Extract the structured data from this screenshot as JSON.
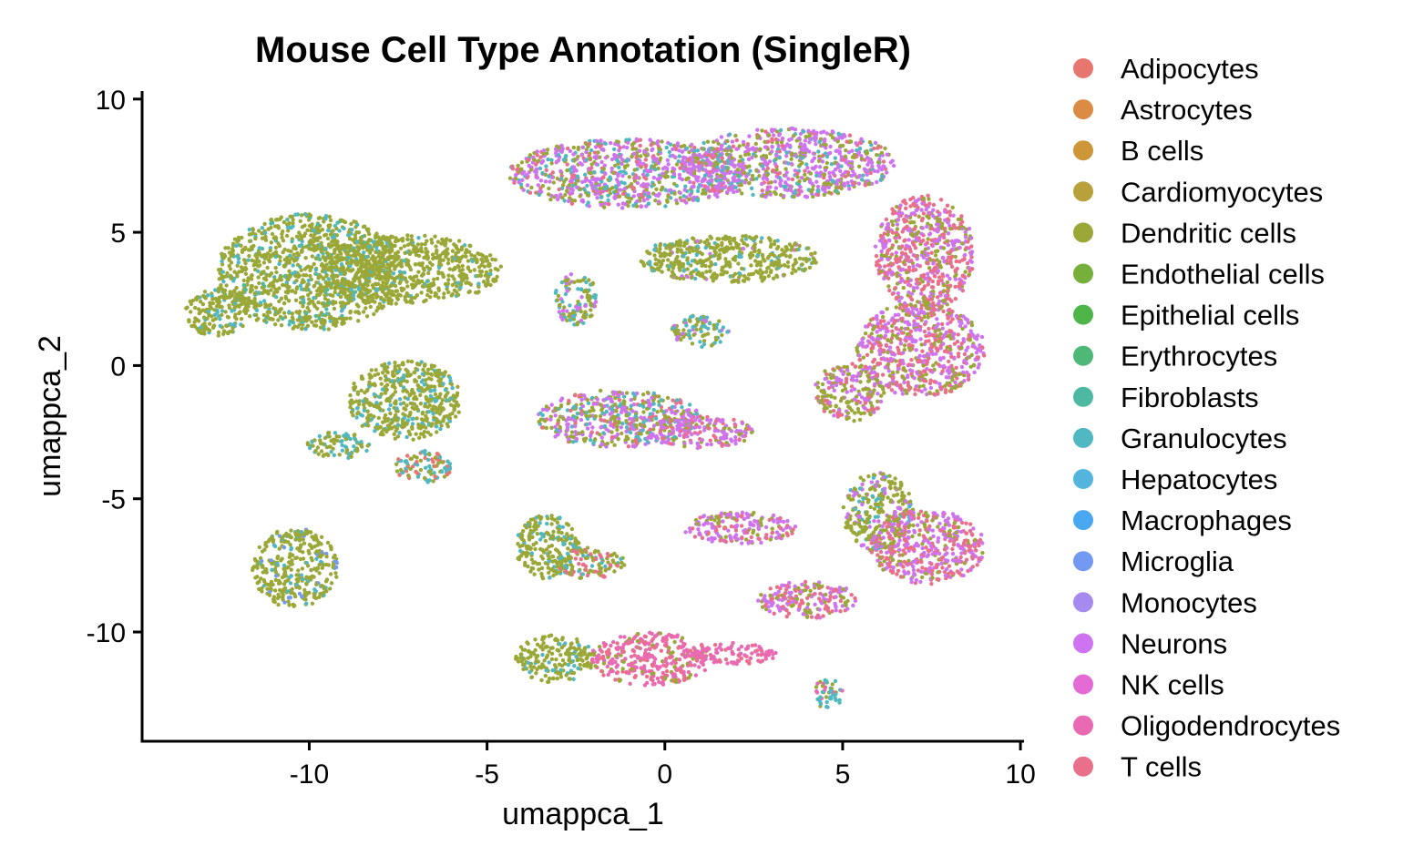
{
  "chart_data": {
    "type": "scatter",
    "title": "Mouse Cell Type Annotation (SingleR)",
    "xlabel": "umappca_1",
    "ylabel": "umappca_2",
    "xlim": [
      -14.7,
      10.1
    ],
    "ylim": [
      -14.1,
      10.3
    ],
    "xticks": [
      -10,
      -5,
      0,
      5,
      10
    ],
    "xtick_labels": [
      "-10",
      "-5",
      "0",
      "5",
      "10"
    ],
    "yticks": [
      10,
      5,
      0,
      -5,
      -10
    ],
    "ytick_labels": [
      "10",
      "5",
      "0",
      "-5",
      "-10"
    ],
    "grid": false,
    "legend_position": "right",
    "series": [
      {
        "name": "Adipocytes",
        "color": "#E7766F"
      },
      {
        "name": "Astrocytes",
        "color": "#DC8B45"
      },
      {
        "name": "B cells",
        "color": "#CD9639"
      },
      {
        "name": "Cardiomyocytes",
        "color": "#B8A03A"
      },
      {
        "name": "Dendritic cells",
        "color": "#9BA838"
      },
      {
        "name": "Endothelial cells",
        "color": "#76AF3A"
      },
      {
        "name": "Epithelial cells",
        "color": "#4FB549"
      },
      {
        "name": "Erythrocytes",
        "color": "#4DB878"
      },
      {
        "name": "Fibroblasts",
        "color": "#4DB9A2"
      },
      {
        "name": "Granulocytes",
        "color": "#50B8C1"
      },
      {
        "name": "Hepatocytes",
        "color": "#53B5DE"
      },
      {
        "name": "Macrophages",
        "color": "#4AA8F2"
      },
      {
        "name": "Microglia",
        "color": "#7399F2"
      },
      {
        "name": "Monocytes",
        "color": "#A68AF0"
      },
      {
        "name": "Neurons",
        "color": "#CF74F0"
      },
      {
        "name": "NK cells",
        "color": "#E46BD6"
      },
      {
        "name": "Oligodendrocytes",
        "color": "#E96AB3"
      },
      {
        "name": "T cells",
        "color": "#EA6F8A"
      }
    ],
    "clusters": [
      {
        "cx": -10.0,
        "cy": 3.5,
        "rx": 2.6,
        "ry": 2.2,
        "mix": {
          "Dendritic cells": 0.8,
          "Granulocytes": 0.12,
          "Fibroblasts": 0.08
        }
      },
      {
        "cx": -7.2,
        "cy": 3.6,
        "rx": 2.6,
        "ry": 1.3,
        "mix": {
          "Dendritic cells": 0.92,
          "Granulocytes": 0.08
        }
      },
      {
        "cx": -12.6,
        "cy": 2.0,
        "rx": 0.9,
        "ry": 0.9,
        "mix": {
          "Dendritic cells": 0.85,
          "Granulocytes": 0.15
        }
      },
      {
        "cx": -7.3,
        "cy": -1.3,
        "rx": 1.6,
        "ry": 1.5,
        "mix": {
          "Dendritic cells": 0.8,
          "Granulocytes": 0.2
        }
      },
      {
        "cx": -6.8,
        "cy": -3.8,
        "rx": 0.8,
        "ry": 0.6,
        "mix": {
          "Adipocytes": 0.35,
          "Granulocytes": 0.35,
          "Dendritic cells": 0.3
        }
      },
      {
        "cx": -9.2,
        "cy": -3.0,
        "rx": 0.9,
        "ry": 0.5,
        "mix": {
          "Granulocytes": 0.5,
          "Dendritic cells": 0.5
        }
      },
      {
        "cx": -10.4,
        "cy": -7.6,
        "rx": 1.2,
        "ry": 1.5,
        "mix": {
          "Dendritic cells": 0.85,
          "Granulocytes": 0.1,
          "Microglia": 0.05
        }
      },
      {
        "cx": -1.0,
        "cy": 7.2,
        "rx": 3.4,
        "ry": 1.3,
        "mix": {
          "Neurons": 0.4,
          "Dendritic cells": 0.3,
          "T cells": 0.15,
          "Granulocytes": 0.15
        }
      },
      {
        "cx": 3.5,
        "cy": 7.6,
        "rx": 3.0,
        "ry": 1.3,
        "mix": {
          "Neurons": 0.5,
          "Dendritic cells": 0.25,
          "Granulocytes": 0.15,
          "T cells": 0.1
        }
      },
      {
        "cx": 1.8,
        "cy": 4.0,
        "rx": 2.5,
        "ry": 0.9,
        "mix": {
          "Dendritic cells": 0.85,
          "Granulocytes": 0.1,
          "Neurons": 0.05
        }
      },
      {
        "cx": 7.3,
        "cy": 4.2,
        "rx": 1.4,
        "ry": 2.2,
        "mix": {
          "T cells": 0.4,
          "Neurons": 0.35,
          "Dendritic cells": 0.25
        }
      },
      {
        "cx": 7.2,
        "cy": 0.6,
        "rx": 1.8,
        "ry": 1.8,
        "mix": {
          "Neurons": 0.45,
          "T cells": 0.3,
          "Dendritic cells": 0.25
        }
      },
      {
        "cx": 5.2,
        "cy": -1.0,
        "rx": 1.0,
        "ry": 1.1,
        "mix": {
          "Dendritic cells": 0.5,
          "Neurons": 0.3,
          "T cells": 0.2
        }
      },
      {
        "cx": -2.5,
        "cy": 2.5,
        "rx": 0.6,
        "ry": 1.0,
        "mix": {
          "Dendritic cells": 0.45,
          "Granulocytes": 0.35,
          "Neurons": 0.2
        }
      },
      {
        "cx": 1.0,
        "cy": 1.3,
        "rx": 0.8,
        "ry": 0.6,
        "mix": {
          "Dendritic cells": 0.5,
          "Granulocytes": 0.3,
          "Neurons": 0.2
        }
      },
      {
        "cx": -1.3,
        "cy": -2.0,
        "rx": 2.3,
        "ry": 1.1,
        "mix": {
          "Neurons": 0.35,
          "Dendritic cells": 0.35,
          "Granulocytes": 0.2,
          "T cells": 0.1
        }
      },
      {
        "cx": 1.0,
        "cy": -2.5,
        "rx": 1.5,
        "ry": 0.6,
        "mix": {
          "Neurons": 0.5,
          "T cells": 0.3,
          "Dendritic cells": 0.2
        }
      },
      {
        "cx": 2.1,
        "cy": -6.1,
        "rx": 1.6,
        "ry": 0.6,
        "mix": {
          "Neurons": 0.6,
          "Dendritic cells": 0.2,
          "T cells": 0.2
        }
      },
      {
        "cx": 6.0,
        "cy": -5.5,
        "rx": 1.0,
        "ry": 1.5,
        "mix": {
          "Dendritic cells": 0.65,
          "Neurons": 0.2,
          "Granulocytes": 0.15
        }
      },
      {
        "cx": 7.4,
        "cy": -6.8,
        "rx": 1.6,
        "ry": 1.4,
        "mix": {
          "T cells": 0.45,
          "Neurons": 0.35,
          "Dendritic cells": 0.2
        }
      },
      {
        "cx": 4.0,
        "cy": -8.8,
        "rx": 1.4,
        "ry": 0.7,
        "mix": {
          "Neurons": 0.4,
          "T cells": 0.3,
          "Dendritic cells": 0.3
        }
      },
      {
        "cx": -3.3,
        "cy": -6.8,
        "rx": 0.9,
        "ry": 1.2,
        "mix": {
          "Dendritic cells": 0.8,
          "Granulocytes": 0.2
        }
      },
      {
        "cx": -2.1,
        "cy": -7.4,
        "rx": 1.0,
        "ry": 0.6,
        "mix": {
          "Dendritic cells": 0.5,
          "T cells": 0.3,
          "Granulocytes": 0.2
        }
      },
      {
        "cx": -3.1,
        "cy": -11.0,
        "rx": 1.1,
        "ry": 0.9,
        "mix": {
          "Dendritic cells": 0.85,
          "Granulocytes": 0.15
        }
      },
      {
        "cx": -0.4,
        "cy": -11.0,
        "rx": 1.7,
        "ry": 1.0,
        "mix": {
          "Oligodendrocytes": 0.5,
          "T cells": 0.3,
          "Dendritic cells": 0.2
        }
      },
      {
        "cx": 2.0,
        "cy": -10.8,
        "rx": 1.2,
        "ry": 0.4,
        "mix": {
          "Oligodendrocytes": 0.7,
          "T cells": 0.3
        }
      },
      {
        "cx": 4.6,
        "cy": -12.3,
        "rx": 0.4,
        "ry": 0.6,
        "mix": {
          "Granulocytes": 0.5,
          "Dendritic cells": 0.3,
          "Oligodendrocytes": 0.2
        }
      }
    ]
  }
}
